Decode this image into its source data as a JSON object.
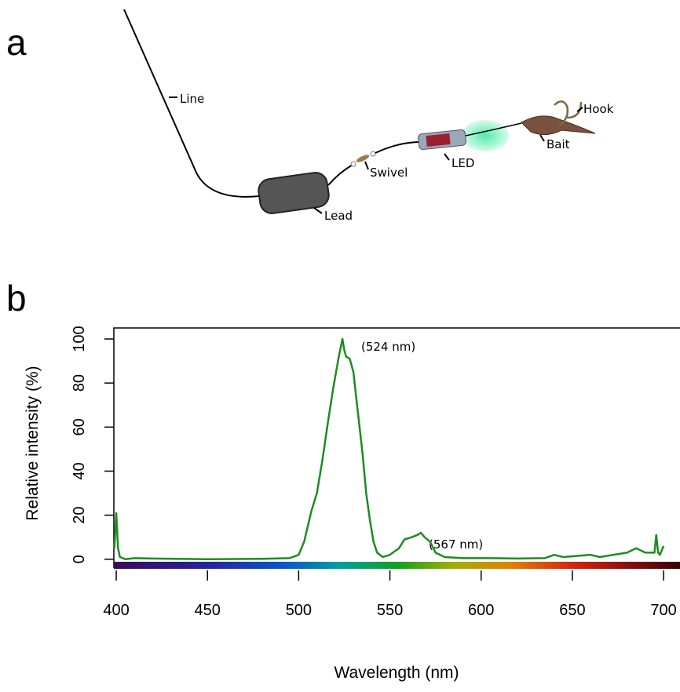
{
  "figure_a": {
    "panel_label": "a",
    "labels": {
      "line": "Line",
      "lead": "Lead",
      "swivel": "Swivel",
      "led": "LED",
      "bait": "Bait",
      "hook": "Hook"
    }
  },
  "chart_data": {
    "type": "line",
    "panel_label": "b",
    "x_label": "Wavelength (nm)",
    "y_label": "Relative intensity (%)",
    "annotations": [
      "(524 nm)",
      "(567 nm)"
    ],
    "x": [
      399,
      400,
      401,
      402,
      405,
      410,
      420,
      450,
      480,
      495,
      500,
      503,
      507,
      510,
      513,
      516,
      519,
      522,
      524,
      525,
      526,
      528,
      530,
      532,
      535,
      537,
      539,
      541,
      543,
      546,
      550,
      555,
      558,
      562,
      565,
      567,
      569,
      572,
      575,
      580,
      590,
      600,
      605,
      620,
      635,
      640,
      645,
      660,
      665,
      680,
      685,
      690,
      695,
      696,
      697,
      698,
      700
    ],
    "values": [
      5,
      21,
      5,
      1,
      0,
      0.5,
      0.3,
      0,
      0.2,
      0.5,
      2,
      8,
      22,
      30,
      45,
      62,
      78,
      92,
      100,
      95,
      92,
      91,
      85,
      70,
      48,
      30,
      18,
      8,
      3,
      1,
      2,
      5,
      9,
      10,
      11,
      12,
      10,
      8,
      3,
      1,
      0.5,
      0.5,
      0.5,
      0.3,
      0.5,
      2,
      1,
      2,
      1,
      3,
      5,
      3,
      3,
      11,
      3,
      2,
      6
    ],
    "color": "#1e8c1e",
    "xlim": [
      398.7,
      709
    ],
    "ylim": [
      -4,
      105
    ],
    "xticks": [
      400,
      450,
      500,
      550,
      600,
      650,
      700
    ],
    "yticks": [
      0,
      20,
      40,
      60,
      80,
      100
    ]
  }
}
